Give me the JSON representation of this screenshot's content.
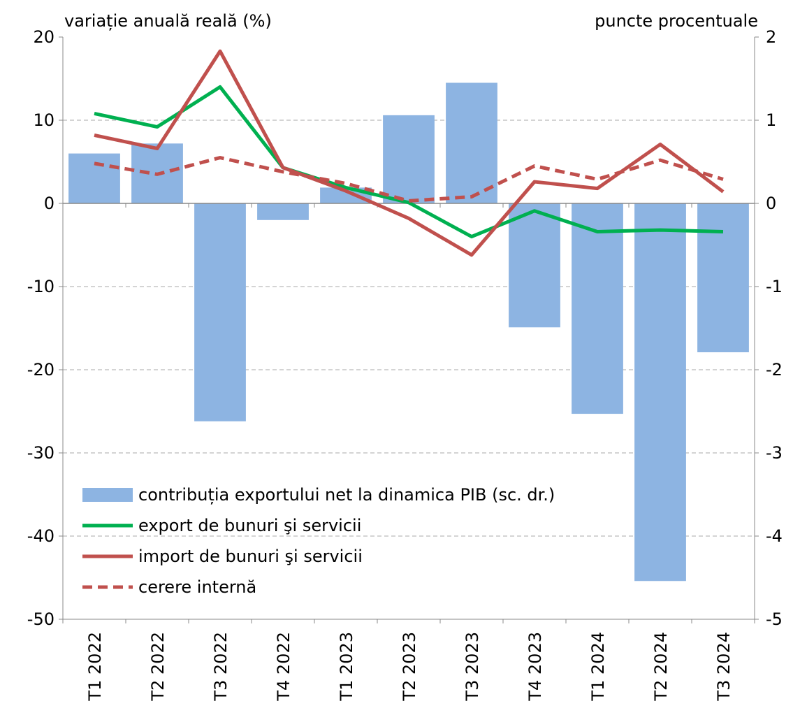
{
  "chart_data": {
    "type": "bar-line",
    "y_label": "variație anuală reală (%)",
    "y2_label": "puncte procentuale",
    "categories": [
      "T1 2022",
      "T2 2022",
      "T3 2022",
      "T4 2022",
      "T1 2023",
      "T2 2023",
      "T3 2023",
      "T4 2023",
      "T1 2024",
      "T2 2024",
      "T3 2024"
    ],
    "ylim": [
      -50,
      20
    ],
    "yticks": [
      -50,
      -40,
      -30,
      -20,
      -10,
      0,
      10,
      20
    ],
    "y2lim": [
      -5,
      2
    ],
    "y2ticks": [
      -5,
      -4,
      -3,
      -2,
      -1,
      0,
      1,
      2
    ],
    "grid": true,
    "series": [
      {
        "name": "contribuția exportului net la dinamica PIB (sc. dr.)",
        "type": "bar",
        "axis": "y2",
        "color": "#8db4e2",
        "values": [
          0.6,
          0.72,
          -2.62,
          -0.2,
          0.19,
          1.06,
          1.45,
          -1.49,
          -2.53,
          -4.54,
          -1.79
        ]
      },
      {
        "name": "export de bunuri şi servicii",
        "type": "line",
        "color": "#00b050",
        "values": [
          10.8,
          9.2,
          14.0,
          4.3,
          1.9,
          0.1,
          -4.0,
          -0.9,
          -3.4,
          -3.2,
          -3.4
        ]
      },
      {
        "name": "import de bunuri şi servicii",
        "type": "line",
        "color": "#c0504d",
        "values": [
          8.2,
          6.6,
          18.3,
          4.3,
          1.5,
          -1.8,
          -6.2,
          2.6,
          1.8,
          7.1,
          1.4
        ]
      },
      {
        "name": "cerere internă",
        "type": "line",
        "color": "#c0504d",
        "dashed": true,
        "values": [
          4.8,
          3.5,
          5.5,
          3.8,
          2.4,
          0.3,
          0.8,
          4.5,
          2.9,
          5.2,
          2.9
        ]
      }
    ]
  }
}
